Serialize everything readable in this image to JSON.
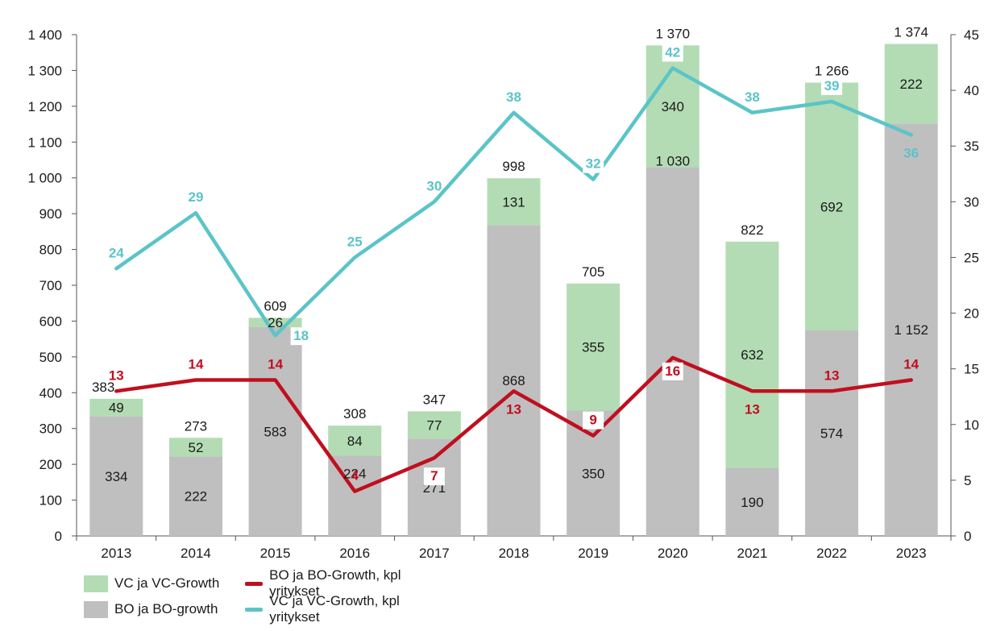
{
  "chart_data": {
    "type": "bar",
    "stacked": true,
    "categories": [
      "2013",
      "2014",
      "2015",
      "2016",
      "2017",
      "2018",
      "2019",
      "2020",
      "2021",
      "2022",
      "2023"
    ],
    "series": [
      {
        "name": "BO ja BO-growth",
        "type": "bar",
        "axis": "left",
        "color": "#bfbfbf",
        "values": [
          334,
          222,
          583,
          224,
          271,
          868,
          350,
          1030,
          190,
          574,
          1152
        ]
      },
      {
        "name": "VC ja VC-Growth",
        "type": "bar",
        "axis": "left",
        "color": "#b3dcb4",
        "values": [
          49,
          52,
          26,
          84,
          77,
          131,
          355,
          340,
          632,
          692,
          222
        ]
      },
      {
        "name": "BO ja BO-Growth, kpl yritykset",
        "type": "line",
        "axis": "right",
        "color": "#c00f1f",
        "values": [
          13,
          14,
          14,
          4,
          7,
          13,
          9,
          16,
          13,
          13,
          14
        ]
      },
      {
        "name": "VC ja VC-Growth, kpl yritykset",
        "type": "line",
        "axis": "right",
        "color": "#5bc4c8",
        "values": [
          24,
          29,
          18,
          25,
          30,
          38,
          32,
          42,
          38,
          39,
          36
        ]
      }
    ],
    "totals": [
      383,
      273,
      609,
      308,
      347,
      998,
      705,
      1370,
      822,
      1266,
      1374
    ],
    "y_left": {
      "ylim": [
        0,
        1400
      ],
      "ticks": [
        0,
        100,
        200,
        300,
        400,
        500,
        600,
        700,
        800,
        900,
        1000,
        1100,
        1200,
        1300,
        1400
      ]
    },
    "y_right": {
      "ylim": [
        0,
        45
      ],
      "ticks": [
        0,
        5,
        10,
        15,
        20,
        25,
        30,
        35,
        40,
        45
      ]
    },
    "legend_position": "bottom-left",
    "grid": false
  },
  "legend": {
    "vc_bar": "VC ja VC-Growth",
    "bo_line": "BO ja BO-Growth, kpl yritykset",
    "bo_bar": "BO ja BO-growth",
    "vc_line": "VC ja VC-Growth, kpl yritykset"
  }
}
